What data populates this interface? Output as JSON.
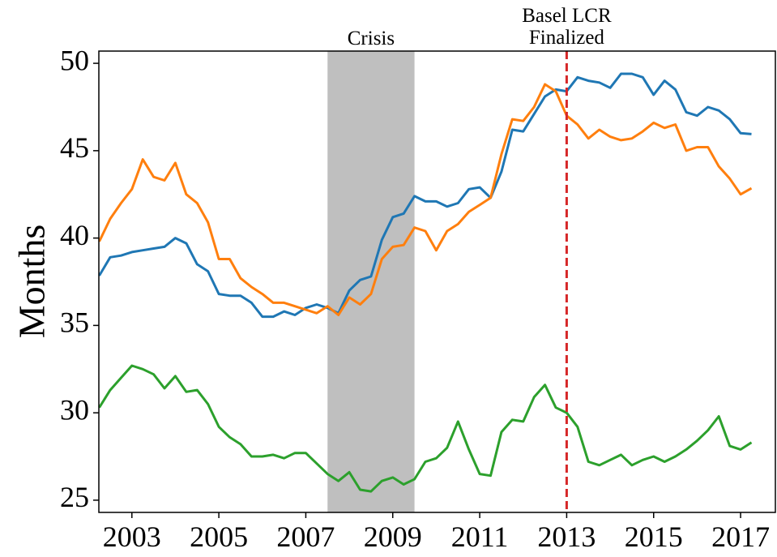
{
  "chart_data": {
    "type": "line",
    "ylabel": "Months",
    "x": [
      2002.25,
      2002.5,
      2002.75,
      2003,
      2003.25,
      2003.5,
      2003.75,
      2004,
      2004.25,
      2004.5,
      2004.75,
      2005,
      2005.25,
      2005.5,
      2005.75,
      2006,
      2006.25,
      2006.5,
      2006.75,
      2007,
      2007.25,
      2007.5,
      2007.75,
      2008,
      2008.25,
      2008.5,
      2008.75,
      2009,
      2009.25,
      2009.5,
      2009.75,
      2010,
      2010.25,
      2010.5,
      2010.75,
      2011,
      2011.25,
      2011.5,
      2011.75,
      2012,
      2012.25,
      2012.5,
      2012.75,
      2013,
      2013.25,
      2013.5,
      2013.75,
      2014,
      2014.25,
      2014.5,
      2014.75,
      2015,
      2015.25,
      2015.5,
      2015.75,
      2016,
      2016.25,
      2016.5,
      2016.75,
      2017,
      2017.25
    ],
    "series": [
      {
        "color": "#1f77b4",
        "values": [
          37.85,
          38.9,
          39.0,
          39.2,
          39.3,
          39.4,
          39.5,
          40.0,
          39.7,
          38.5,
          38.1,
          36.8,
          36.7,
          36.7,
          36.3,
          35.5,
          35.5,
          35.8,
          35.6,
          36.0,
          36.2,
          36.0,
          35.7,
          37.0,
          37.6,
          37.8,
          39.9,
          41.2,
          41.4,
          42.4,
          42.1,
          42.1,
          41.8,
          42.0,
          42.8,
          42.9,
          42.3,
          43.8,
          46.2,
          46.1,
          47.1,
          48.1,
          48.5,
          48.4,
          49.2,
          49.0,
          48.9,
          48.6,
          49.4,
          49.4,
          49.2,
          48.2,
          49.0,
          48.5,
          47.2,
          47.0,
          47.5,
          47.3,
          46.8,
          46.0,
          45.95
        ]
      },
      {
        "color": "#ff7f0e",
        "values": [
          39.8,
          41.1,
          42.0,
          42.8,
          44.5,
          43.5,
          43.3,
          44.3,
          42.5,
          42.0,
          40.9,
          38.8,
          38.8,
          37.7,
          37.2,
          36.8,
          36.3,
          36.3,
          36.1,
          35.9,
          35.7,
          36.1,
          35.6,
          36.6,
          36.2,
          36.8,
          38.8,
          39.5,
          39.6,
          40.6,
          40.4,
          39.3,
          40.4,
          40.8,
          41.5,
          41.9,
          42.3,
          44.8,
          46.8,
          46.7,
          47.5,
          48.8,
          48.4,
          47.0,
          46.5,
          45.7,
          46.2,
          45.8,
          45.6,
          45.7,
          46.1,
          46.6,
          46.3,
          46.5,
          45.0,
          45.2,
          45.2,
          44.1,
          43.4,
          42.5,
          42.85
        ]
      },
      {
        "color": "#2ca02c",
        "values": [
          30.3,
          31.3,
          32.0,
          32.7,
          32.5,
          32.2,
          31.4,
          32.1,
          31.2,
          31.3,
          30.5,
          29.2,
          28.6,
          28.2,
          27.5,
          27.5,
          27.6,
          27.4,
          27.7,
          27.7,
          27.1,
          26.5,
          26.1,
          26.6,
          25.6,
          25.5,
          26.1,
          26.3,
          25.9,
          26.2,
          27.2,
          27.4,
          28.0,
          29.5,
          27.9,
          26.5,
          26.4,
          28.9,
          29.6,
          29.5,
          30.9,
          31.6,
          30.3,
          30.0,
          29.2,
          27.2,
          27.0,
          27.3,
          27.6,
          27.0,
          27.3,
          27.5,
          27.2,
          27.5,
          27.9,
          28.4,
          29.0,
          29.8,
          28.1,
          27.9,
          28.3
        ]
      }
    ],
    "xlim": [
      2002.24,
      2017.8
    ],
    "ylim": [
      24.3,
      50.7
    ],
    "xticks": [
      2003,
      2005,
      2007,
      2009,
      2011,
      2013,
      2015,
      2017
    ],
    "yticks": [
      25,
      30,
      35,
      40,
      45,
      50
    ],
    "span": {
      "label": "Crisis",
      "x": [
        2007.5,
        2009.5
      ],
      "color": "#bfbfbf"
    },
    "vline": {
      "lines": [
        "Basel LCR",
        "Finalized"
      ],
      "x": 2013,
      "color": "#d62728"
    }
  }
}
